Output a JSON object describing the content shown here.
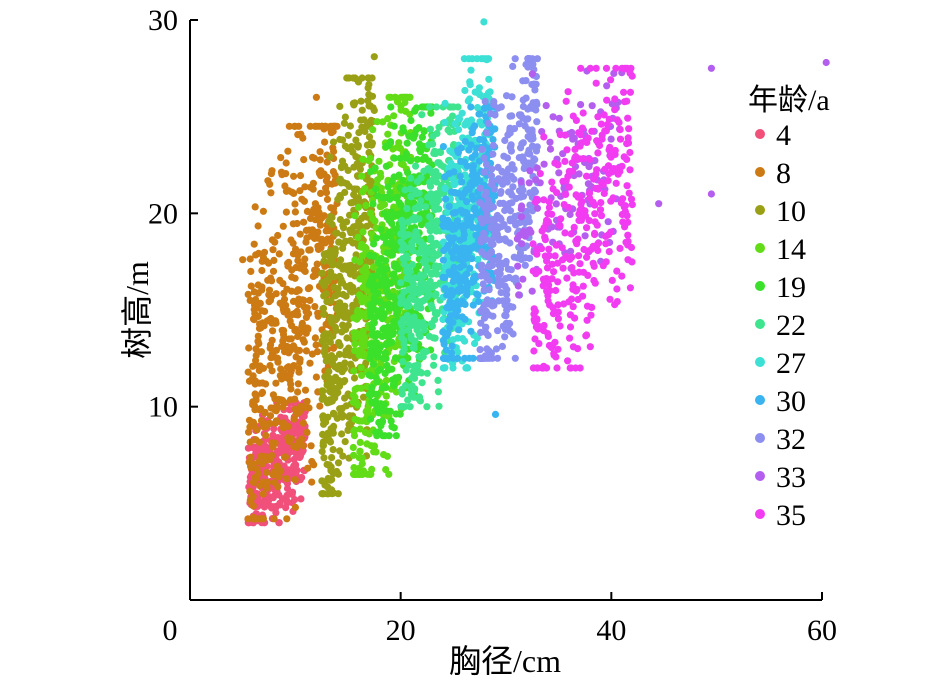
{
  "chart_data": {
    "type": "scatter",
    "title": "",
    "xlabel": "胸径/cm",
    "ylabel": "树高/m",
    "xlim": [
      0,
      60
    ],
    "ylim": [
      0,
      30
    ],
    "x_ticks": [
      0,
      20,
      40,
      60
    ],
    "y_ticks": [
      10,
      20,
      30
    ],
    "grid": false,
    "legend_title": "年龄/a",
    "legend_position": "right",
    "series": [
      {
        "name": "4",
        "color": "#f0507a",
        "x_range": [
          5.5,
          11.0
        ],
        "y_range": [
          4.0,
          10.2
        ],
        "n": 360,
        "outliers": []
      },
      {
        "name": "8",
        "color": "#cc7a14",
        "x_range": [
          5.5,
          14.0
        ],
        "y_range": [
          4.2,
          24.5
        ],
        "n": 560,
        "outliers": [
          [
            5.0,
            17.6
          ],
          [
            12.0,
            26.0
          ]
        ]
      },
      {
        "name": "10",
        "color": "#9aa016",
        "x_range": [
          12.5,
          17.5
        ],
        "y_range": [
          5.5,
          27.0
        ],
        "n": 480,
        "outliers": [
          [
            17.5,
            28.1
          ],
          [
            16.0,
            26.8
          ]
        ]
      },
      {
        "name": "14",
        "color": "#62dc16",
        "x_range": [
          15.5,
          21.0
        ],
        "y_range": [
          6.5,
          26.0
        ],
        "n": 440,
        "outliers": []
      },
      {
        "name": "19",
        "color": "#3ae02a",
        "x_range": [
          17.0,
          23.0
        ],
        "y_range": [
          8.5,
          25.5
        ],
        "n": 440,
        "outliers": []
      },
      {
        "name": "22",
        "color": "#3ee58e",
        "x_range": [
          20.0,
          25.5
        ],
        "y_range": [
          10.0,
          25.5
        ],
        "n": 400,
        "outliers": []
      },
      {
        "name": "27",
        "color": "#3ce0d4",
        "x_range": [
          24.0,
          28.5
        ],
        "y_range": [
          12.0,
          28.0
        ],
        "n": 330,
        "outliers": [
          [
            27.9,
            29.9
          ]
        ]
      },
      {
        "name": "30",
        "color": "#3ab4f0",
        "x_range": [
          24.0,
          29.0
        ],
        "y_range": [
          12.5,
          25.5
        ],
        "n": 320,
        "outliers": [
          [
            29.0,
            9.6
          ]
        ]
      },
      {
        "name": "32",
        "color": "#8c8ef0",
        "x_range": [
          27.5,
          33.0
        ],
        "y_range": [
          12.5,
          28.0
        ],
        "n": 360,
        "outliers": []
      },
      {
        "name": "33",
        "color": "#b45ef0",
        "x_range": [
          31.0,
          41.0
        ],
        "y_range": [
          15.5,
          27.5
        ],
        "n": 120,
        "outliers": [
          [
            44.5,
            20.5
          ],
          [
            49.5,
            21.0
          ],
          [
            49.5,
            27.5
          ],
          [
            60.4,
            27.8
          ]
        ]
      },
      {
        "name": "35",
        "color": "#f23cf2",
        "x_range": [
          32.5,
          42.0
        ],
        "y_range": [
          12.0,
          27.5
        ],
        "n": 340,
        "outliers": [
          [
            33.5,
            12.0
          ],
          [
            38.0,
            13.1
          ]
        ]
      }
    ]
  }
}
